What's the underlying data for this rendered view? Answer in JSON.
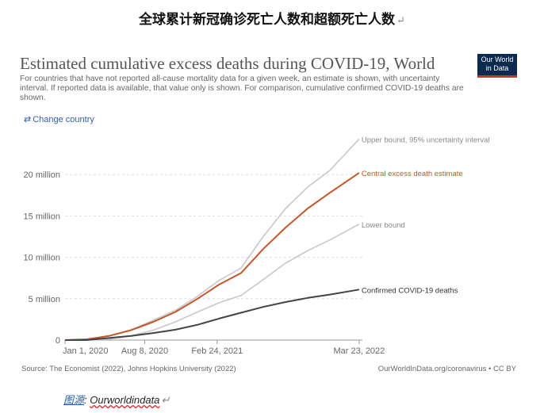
{
  "document": {
    "title": "全球累计新冠确诊死亡人数和超额死亡人数",
    "paragraph_mark": "↵",
    "caption_label": "图源",
    "caption_sep": ": ",
    "caption_source": "Ourworldindata"
  },
  "chart_data": {
    "type": "line",
    "title": "Estimated cumulative excess deaths during COVID-19, World",
    "subtitle": "For countries that have not reported all-cause mortality data for a given week, an estimate is shown, with uncertainty interval. If reported data is available, that value only is shown. For comparison, cumulative confirmed COVID-19 deaths are shown.",
    "logo": {
      "line1": "Our World",
      "line2": "in Data"
    },
    "change_country": "Change country",
    "source": "Source: The Economist (2022), Johns Hopkins University (2022)",
    "license": "OurWorldInData.org/coronavirus • CC BY",
    "x_ticks": [
      "Jan 1, 2020",
      "Aug 8, 2020",
      "Feb 24, 2021",
      "Mar 23, 2022"
    ],
    "y_ticks": [
      "0",
      "5 million",
      "10 million",
      "15 million",
      "20 million"
    ],
    "xlim": [
      "2020-01-01",
      "2022-04-01"
    ],
    "ylim": [
      0,
      25
    ],
    "y_unit": "million",
    "grid": true,
    "series": [
      {
        "name": "Upper bound, 95% uncertainty interval",
        "color": "#c8c8c8",
        "x": [
          "2020-01-01",
          "2020-03-01",
          "2020-05-01",
          "2020-07-01",
          "2020-09-01",
          "2020-11-01",
          "2021-01-01",
          "2021-03-01",
          "2021-05-01",
          "2021-07-01",
          "2021-09-01",
          "2021-11-01",
          "2022-01-01",
          "2022-03-23"
        ],
        "y": [
          0,
          0.1,
          0.5,
          1.2,
          2.4,
          3.6,
          5.3,
          7.2,
          8.7,
          12.5,
          15.9,
          18.5,
          20.5,
          24.3
        ]
      },
      {
        "name": "Central excess death estimate",
        "color": "#c4562a",
        "x": [
          "2020-01-01",
          "2020-03-01",
          "2020-05-01",
          "2020-07-01",
          "2020-09-01",
          "2020-11-01",
          "2021-01-01",
          "2021-03-01",
          "2021-05-01",
          "2021-07-01",
          "2021-09-01",
          "2021-11-01",
          "2022-01-01",
          "2022-03-23"
        ],
        "y": [
          0,
          0.1,
          0.5,
          1.2,
          2.2,
          3.4,
          5.0,
          6.7,
          8.1,
          11.0,
          13.6,
          15.9,
          17.8,
          20.2
        ]
      },
      {
        "name": "Lower bound",
        "color": "#c8c8c8",
        "x": [
          "2020-01-01",
          "2020-03-01",
          "2020-05-01",
          "2020-07-01",
          "2020-09-01",
          "2020-11-01",
          "2021-01-01",
          "2021-03-01",
          "2021-05-01",
          "2021-07-01",
          "2021-09-01",
          "2021-11-01",
          "2022-01-01",
          "2022-03-23"
        ],
        "y": [
          0,
          0,
          0.1,
          0.5,
          1.2,
          2.2,
          3.4,
          4.5,
          5.4,
          7.3,
          9.3,
          10.8,
          12.1,
          14.0
        ]
      },
      {
        "name": "Confirmed COVID-19 deaths",
        "color": "#444444",
        "x": [
          "2020-01-01",
          "2020-03-01",
          "2020-05-01",
          "2020-07-01",
          "2020-09-01",
          "2020-11-01",
          "2021-01-01",
          "2021-03-01",
          "2021-05-01",
          "2021-07-01",
          "2021-09-01",
          "2021-11-01",
          "2022-01-01",
          "2022-03-23"
        ],
        "y": [
          0,
          0.003,
          0.25,
          0.5,
          0.85,
          1.25,
          1.85,
          2.6,
          3.3,
          4.0,
          4.6,
          5.1,
          5.5,
          6.1
        ]
      }
    ]
  }
}
